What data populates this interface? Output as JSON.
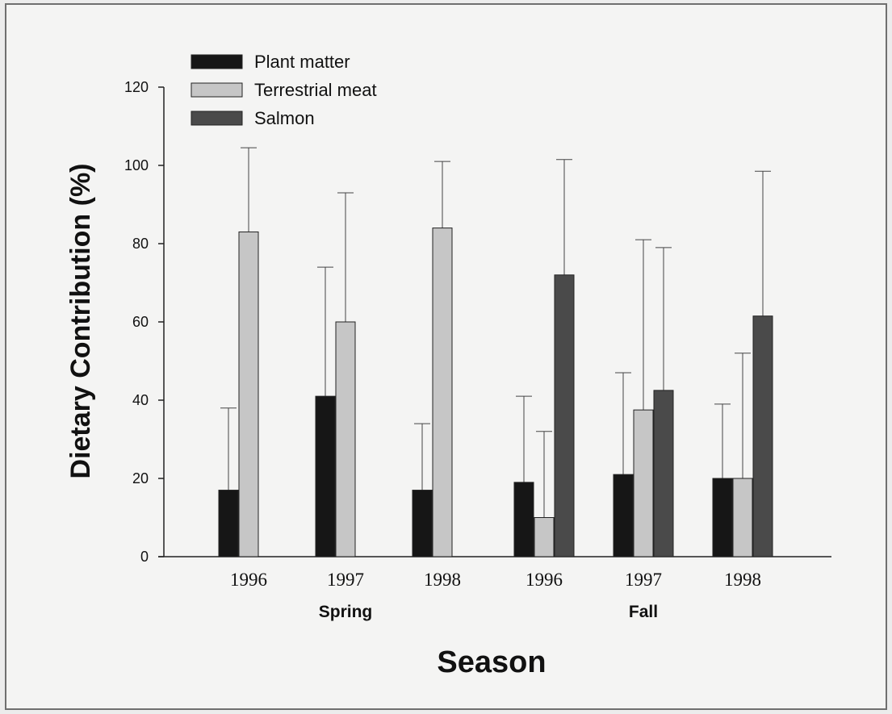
{
  "chart_data": {
    "type": "bar",
    "xlabel": "Season",
    "ylabel": "Dietary Contribution (%)",
    "ylim": [
      0,
      120
    ],
    "yticks": [
      0,
      20,
      40,
      60,
      80,
      100,
      120
    ],
    "groups": [
      {
        "label": "Spring",
        "categories": [
          "1996",
          "1997",
          "1998"
        ]
      },
      {
        "label": "Fall",
        "categories": [
          "1996",
          "1997",
          "1998"
        ]
      }
    ],
    "categories": [
      "1996",
      "1997",
      "1998",
      "1996",
      "1997",
      "1998"
    ],
    "series": [
      {
        "name": "Plant matter",
        "color": "#161616",
        "values": [
          17,
          41,
          17,
          19,
          21,
          20
        ],
        "errors": [
          21,
          33,
          17,
          22,
          26,
          19
        ]
      },
      {
        "name": "Terrestrial meat",
        "color": "#c6c6c6",
        "values": [
          83,
          60,
          84,
          10,
          37.5,
          20
        ],
        "errors": [
          21.5,
          33,
          17,
          22,
          43.5,
          32
        ]
      },
      {
        "name": "Salmon",
        "color": "#4a4a4a",
        "values": [
          null,
          null,
          null,
          72,
          42.5,
          61.5
        ],
        "errors": [
          null,
          null,
          null,
          29.5,
          36.5,
          37
        ]
      }
    ],
    "legend": "top-left",
    "grid": false
  }
}
